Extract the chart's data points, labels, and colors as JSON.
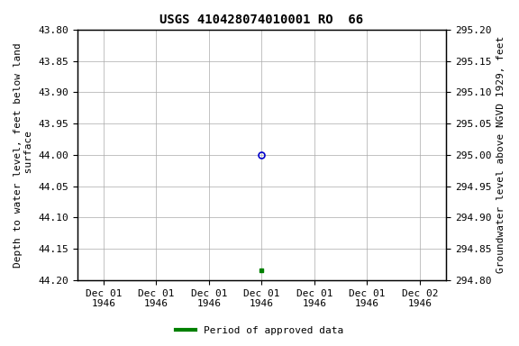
{
  "title": "USGS 410428074010001 RO  66",
  "ylabel_left": "Depth to water level, feet below land\n surface",
  "ylabel_right": "Groundwater level above NGVD 1929, feet",
  "ylim_left": [
    44.2,
    43.8
  ],
  "ylim_right": [
    294.8,
    295.2
  ],
  "yticks_left": [
    43.8,
    43.85,
    43.9,
    43.95,
    44.0,
    44.05,
    44.1,
    44.15,
    44.2
  ],
  "yticks_right": [
    295.2,
    295.15,
    295.1,
    295.05,
    295.0,
    294.95,
    294.9,
    294.85,
    294.8
  ],
  "data_point_x": 3,
  "data_point_value": 44.0,
  "data_point_color": "#0000cc",
  "approved_x": 3,
  "approved_value": 44.185,
  "approved_color": "#008000",
  "background_color": "#ffffff",
  "plot_bg_color": "#ffffff",
  "grid_color": "#aaaaaa",
  "title_fontsize": 10,
  "axis_fontsize": 8,
  "tick_fontsize": 8,
  "legend_label": "Period of approved data",
  "legend_color": "#008000",
  "n_xticks": 7,
  "xtick_labels": [
    "Dec 01\n1946",
    "Dec 01\n1946",
    "Dec 01\n1946",
    "Dec 01\n1946",
    "Dec 01\n1946",
    "Dec 01\n1946",
    "Dec 02\n1946"
  ],
  "xlim": [
    0,
    6
  ]
}
